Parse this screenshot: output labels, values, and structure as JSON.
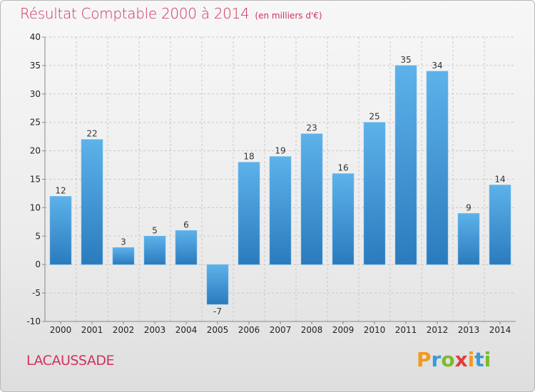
{
  "title": {
    "main": "Résultat Comptable 2000 à 2014",
    "unit": "(en milliers d'€)"
  },
  "place_name": "LACAUSSADE",
  "logo": {
    "text": "Proxiti",
    "letters": [
      {
        "ch": "P",
        "color": "#f29a1f"
      },
      {
        "ch": "r",
        "color": "#3a9ad9"
      },
      {
        "ch": "o",
        "color": "#7cba2e"
      },
      {
        "ch": "x",
        "color": "#e23c3c"
      },
      {
        "ch": "i",
        "color": "#f29a1f"
      },
      {
        "ch": "t",
        "color": "#3a9ad9"
      },
      {
        "ch": "i",
        "color": "#7cba2e"
      }
    ]
  },
  "colors": {
    "title": "#d2325a",
    "bar_top": "#5db2ea",
    "bar_bottom": "#2a7bbd",
    "grid": "#c8c8c8"
  },
  "chart_data": {
    "type": "bar",
    "title": "Résultat Comptable 2000 à 2014",
    "xlabel": "",
    "ylabel": "",
    "categories": [
      "2000",
      "2001",
      "2002",
      "2003",
      "2004",
      "2005",
      "2006",
      "2007",
      "2008",
      "2009",
      "2010",
      "2011",
      "2012",
      "2013",
      "2014"
    ],
    "values": [
      12,
      22,
      3,
      5,
      6,
      -7,
      18,
      19,
      23,
      16,
      25,
      35,
      34,
      9,
      14
    ],
    "ylim": [
      -10,
      40
    ],
    "yticks": [
      -10,
      -5,
      0,
      5,
      10,
      15,
      20,
      25,
      30,
      35,
      40
    ],
    "grid": "horizontal dashed",
    "legend": "none"
  }
}
